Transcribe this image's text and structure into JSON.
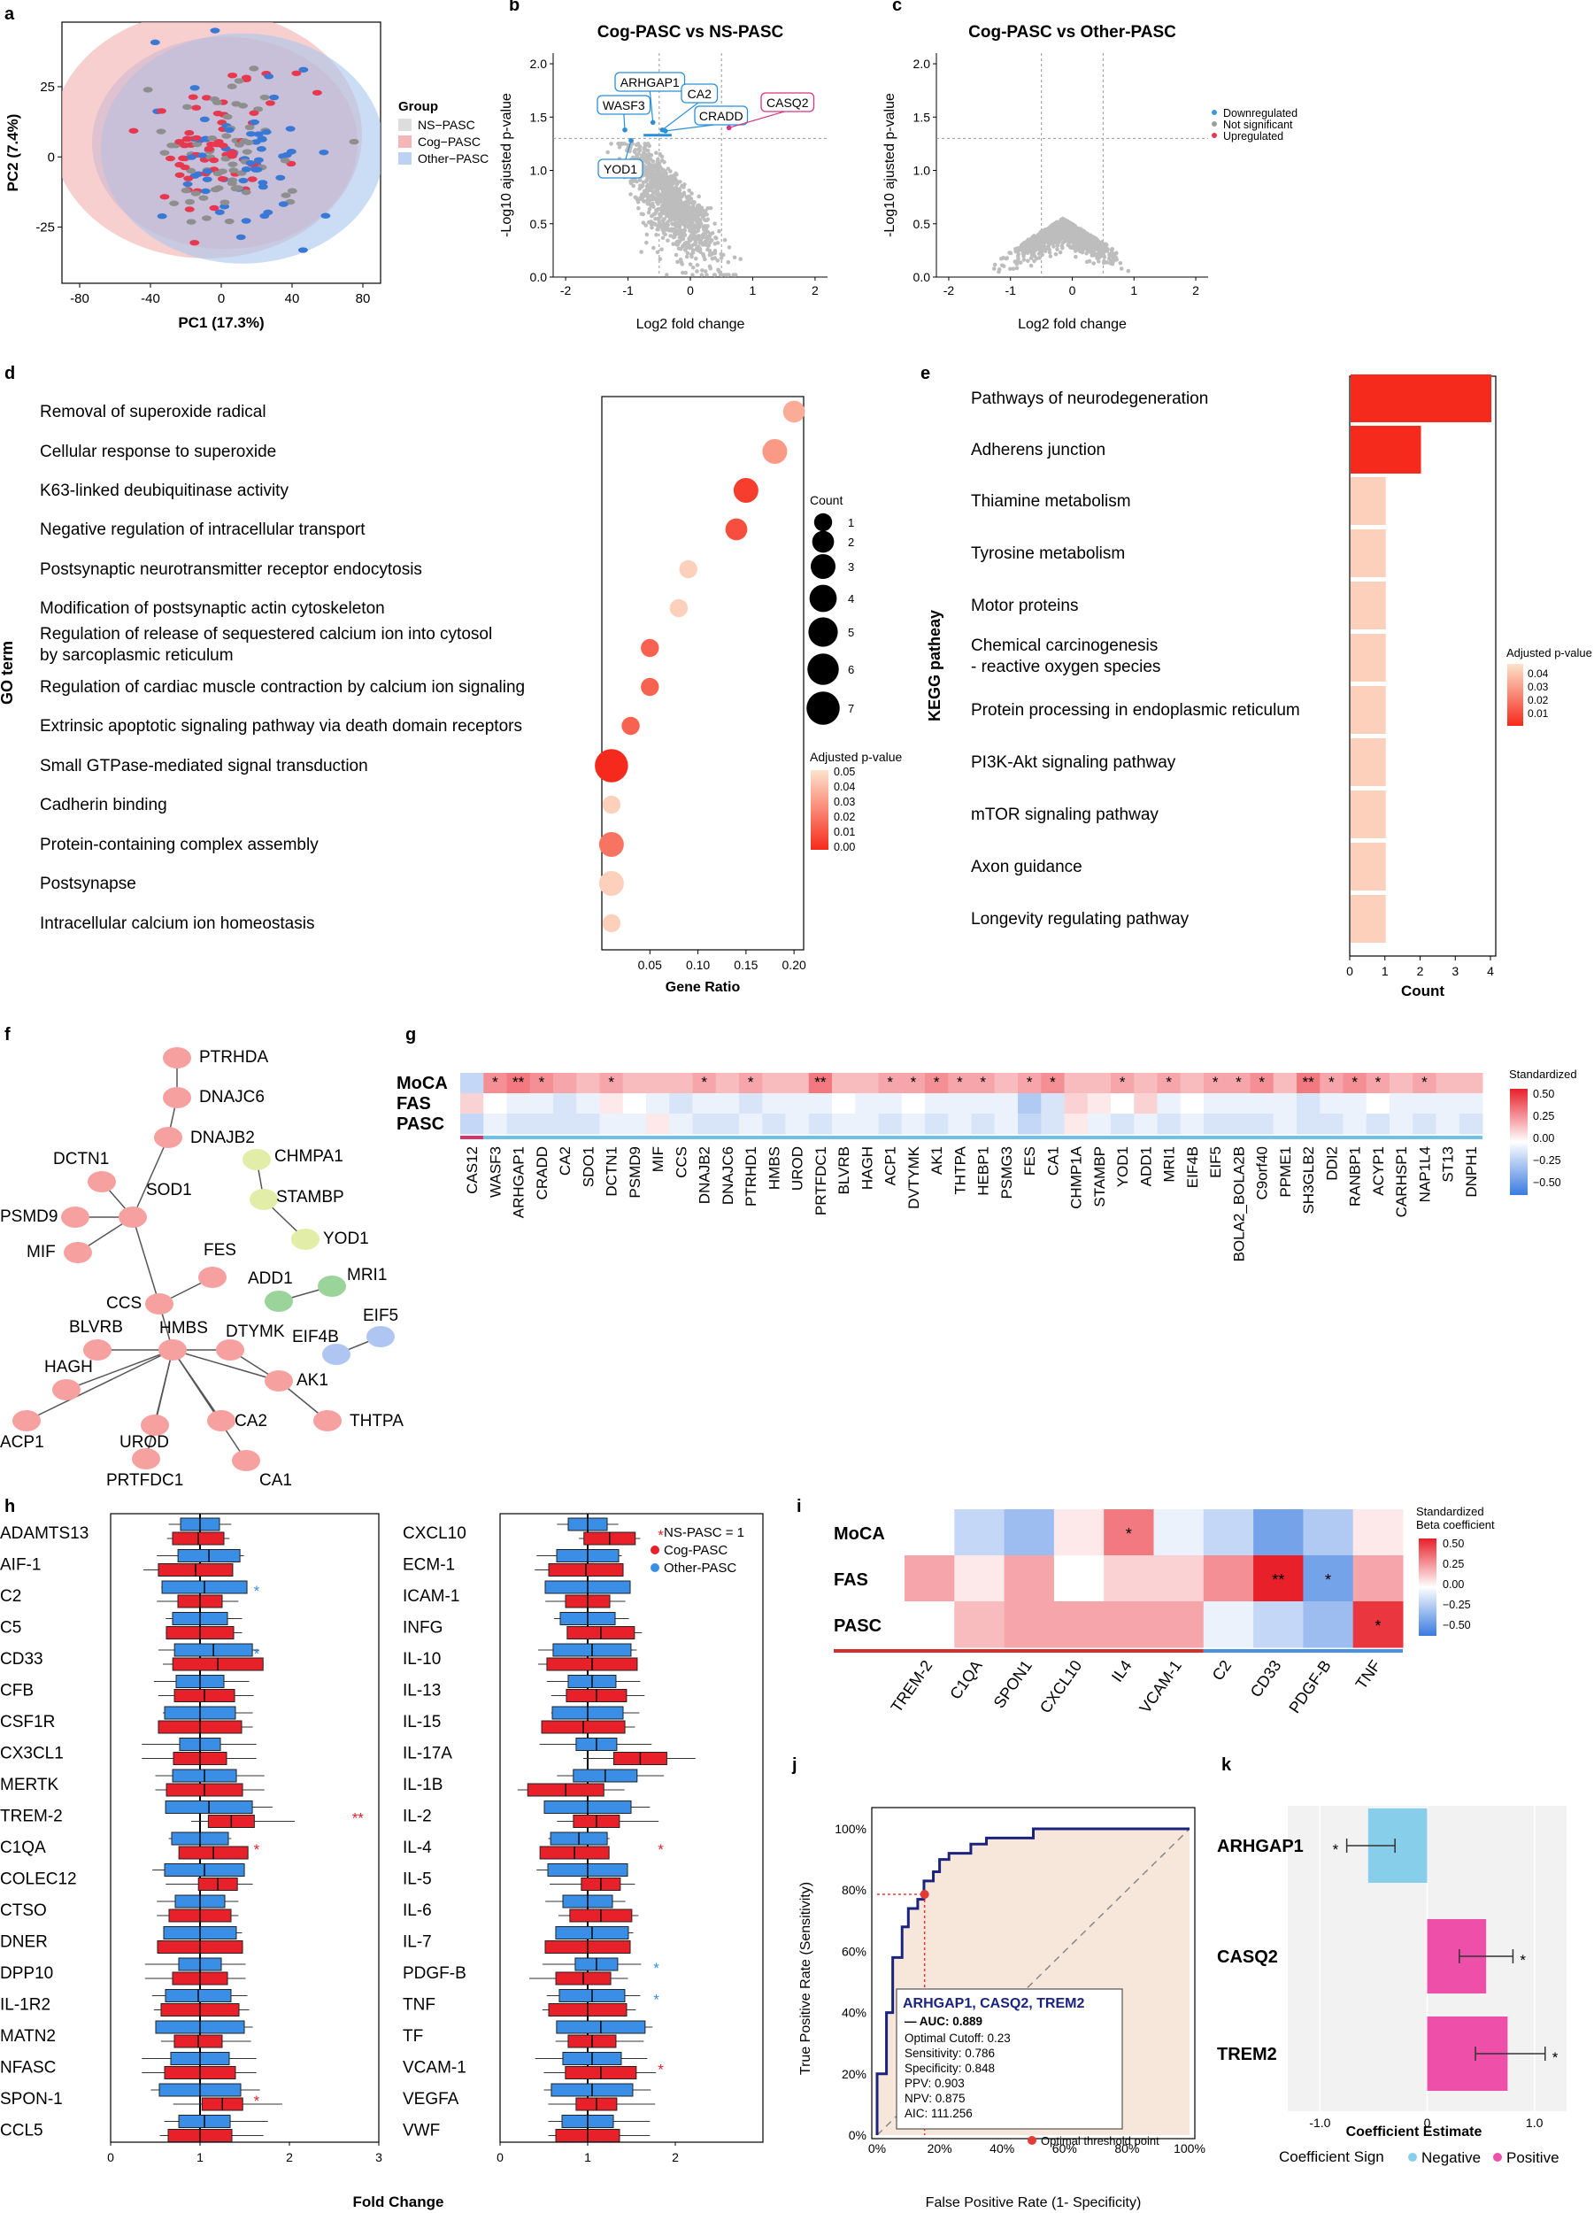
{
  "panels": {
    "a": {
      "letter": "a",
      "legend_title": "Group",
      "legend": [
        "NS−PASC",
        "Cog−PASC",
        "Other−PASC"
      ],
      "xlabel": "PC1 (17.3%)",
      "ylabel": "PC2 (7.4%)",
      "xticks": [
        "-80",
        "-40",
        "0",
        "40",
        "80"
      ],
      "yticks": [
        "25",
        "0",
        "-25"
      ],
      "colors": {
        "NS": "#8e8e8e",
        "Cog": "#e8384f",
        "Other": "#3a78d6"
      }
    },
    "b": {
      "letter": "b",
      "title": "Cog-PASC vs NS-PASC",
      "xlabel": "Log2 fold change",
      "ylabel": "-Log10 ajusted p-value",
      "xticks": [
        "-2",
        "-1",
        "0",
        "1",
        "2"
      ],
      "yticks": [
        "2.0",
        "1.5",
        "1.0",
        "0.5",
        "0.0"
      ],
      "genes": [
        "ARHGAP1",
        "WASF3",
        "CA2",
        "CRADD",
        "YOD1",
        "CASQ2"
      ]
    },
    "c": {
      "letter": "c",
      "title": "Cog-PASC vs Other-PASC",
      "xlabel": "Log2 fold change",
      "ylabel": "-Log10 ajusted p-value",
      "xticks": [
        "-2",
        "-1",
        "0",
        "1",
        "2"
      ],
      "yticks": [
        "2.0",
        "1.5",
        "1.0",
        "0.5",
        "0.0"
      ],
      "legend": [
        "Downregulated",
        "Not significant",
        "Upregulated"
      ],
      "colors": {
        "down": "#3a9ad9",
        "ns": "#9e9e9e",
        "up": "#e8384f"
      }
    },
    "d": {
      "letter": "d",
      "ylabel": "GO term",
      "xlabel": "Gene Ratio",
      "xticks": [
        "0.05",
        "0.10",
        "0.15",
        "0.20"
      ],
      "count_title": "Count",
      "count_labels": [
        "1",
        "2",
        "3",
        "4",
        "5",
        "6",
        "7"
      ],
      "p_title": "Adjusted p-value",
      "p_labels": [
        "0.05",
        "0.04",
        "0.03",
        "0.02",
        "0.01",
        "0.00"
      ],
      "terms": [
        "Removal of superoxide radical",
        "Cellular response to superoxide",
        "K63-linked deubiquitinase activity",
        "Negative regulation of intracellular transport",
        "Postsynaptic neurotransmitter receptor endocytosis",
        "Modification of postsynaptic actin cytoskeleton",
        "Regulation of release of sequestered calcium ion into cytosol",
        "by sarcoplasmic reticulum",
        "Regulation of cardiac muscle contraction by calcium ion signaling",
        "Extrinsic apoptotic signaling pathway via death domain receptors",
        "Small GTPase-mediated signal transduction",
        "Cadherin binding",
        "Protein-containing complex assembly",
        "Postsynapse",
        "Intracellular calcium ion homeostasis"
      ]
    },
    "e": {
      "letter": "e",
      "ylabel": "KEGG patheay",
      "xlabel": "Count",
      "xticks": [
        "0",
        "1",
        "2",
        "3",
        "4"
      ],
      "p_title": "Adjusted p-value",
      "p_labels": [
        "0.04",
        "0.03",
        "0.02",
        "0.01"
      ],
      "pathways": [
        "Pathways of neurodegeneration",
        "Adherens junction",
        "Thiamine metabolism",
        "Tyrosine metabolism",
        "Motor proteins",
        "Chemical carcinogenesis",
        "- reactive oxygen species",
        "Protein processing in endoplasmic reticulum",
        "PI3K-Akt signaling pathway",
        "mTOR signaling pathway",
        "Axon guidance",
        "Longevity regulating pathway"
      ]
    },
    "f": {
      "letter": "f",
      "nodes": [
        "PTRHDA",
        "DNAJC6",
        "DNAJB2",
        "DCTN1",
        "PSMD9",
        "SOD1",
        "MIF",
        "CHMPA1",
        "STAMBP",
        "YOD1",
        "FES",
        "ADD1",
        "MRI1",
        "CCS",
        "EIF4B",
        "EIF5",
        "BLVRB",
        "HMBS",
        "DTYMK",
        "HAGH",
        "AK1",
        "ACP1",
        "CA2",
        "THTPA",
        "UROD",
        "PRTFDC1",
        "CA1"
      ]
    },
    "g": {
      "letter": "g",
      "rows": [
        "MoCA",
        "FAS",
        "PASC"
      ],
      "legend_title": "Standardized",
      "legend_labels": [
        "0.50",
        "0.25",
        "0.00",
        "−0.25",
        "−0.50"
      ],
      "genes": [
        "CAS12",
        "WASF3",
        "ARHGAP1",
        "CRADD",
        "CA2",
        "SDO1",
        "DCTN1",
        "PSMD9",
        "MIF",
        "CCS",
        "DNAJB2",
        "DNAJC6",
        "PTRHD1",
        "HMBS",
        "UROD",
        "PRTFDC1",
        "BLVRB",
        "HAGH",
        "ACP1",
        "DVTYMK",
        "AK1",
        "THTPA",
        "HEBP1",
        "PSMG3",
        "FES",
        "CA1",
        "CHMP1A",
        "STAMBP",
        "YOD1",
        "ADD1",
        "MRI1",
        "EIF4B",
        "EIF5",
        "BOLA2_BOLA2B",
        "C9orf40",
        "PPME1",
        "SH3GLB2",
        "DDI2",
        "RANBP1",
        "ACYP1",
        "CARHSP1",
        "NAP1L4",
        "ST13",
        "DNPH1"
      ],
      "stars": [
        "",
        "*",
        "**",
        "*",
        "",
        "",
        "*",
        "",
        "",
        "",
        "*",
        "",
        "*",
        "",
        "",
        "**",
        "",
        "",
        "*",
        "*",
        "*",
        "*",
        "*",
        "",
        "*",
        "*",
        "",
        "",
        "*",
        "",
        "*",
        "",
        "*",
        "*",
        "*",
        "",
        "**",
        "*",
        "*",
        "*",
        "",
        "*",
        "",
        ""
      ]
    },
    "h": {
      "letter": "h",
      "xlabel": "Fold Change",
      "xticks": [
        "0",
        "1",
        "2",
        "3"
      ],
      "legend": [
        "NS-PASC = 1",
        "Cog-PASC",
        "Other-PASC"
      ],
      "left": [
        "ADAMTS13",
        "AIF-1",
        "C2",
        "C5",
        "CD33",
        "CFB",
        "CSF1R",
        "CX3CL1",
        "MERTK",
        "TREM-2",
        "C1QA",
        "COLEC12",
        "CTSO",
        "DNER",
        "DPP10",
        "IL-1R2",
        "MATN2",
        "NFASC",
        "SPON-1",
        "CCL5"
      ],
      "right": [
        "CXCL10",
        "ECM-1",
        "ICAM-1",
        "INFG",
        "IL-10",
        "IL-13",
        "IL-15",
        "IL-17A",
        "IL-1B",
        "IL-2",
        "IL-4",
        "IL-5",
        "IL-6",
        "IL-7",
        "PDGF-B",
        "TNF",
        "TF",
        "VCAM-1",
        "VEGFA",
        "VWF"
      ],
      "stars_left": [
        "",
        "",
        "*",
        "",
        "*",
        "",
        "",
        "",
        "",
        "**",
        "*",
        "",
        "",
        "",
        "",
        "",
        "",
        "",
        "*",
        ""
      ],
      "stars_right": [
        "*",
        "",
        "",
        "",
        "",
        "",
        "",
        "",
        "",
        "",
        "*",
        "",
        "",
        "",
        "*",
        "*",
        "",
        "*",
        "",
        ""
      ]
    },
    "i": {
      "letter": "i",
      "rows": [
        "MoCA",
        "FAS",
        "PASC"
      ],
      "legend_title": "Standardized",
      "legend_title2": "Beta coefficient",
      "legend_labels": [
        "0.50",
        "0.25",
        "0.00",
        "−0.25",
        "−0.50"
      ],
      "cols": [
        "TREM-2",
        "C1QA",
        "SPON1",
        "CXCL10",
        "IL4",
        "VCAM-1",
        "C2",
        "CD33",
        "PDGF-B",
        "TNF"
      ]
    },
    "j": {
      "letter": "j",
      "xlabel": "False Positive Rate (1- Specificity)",
      "ylabel": "True Positive Rate (Sensitivity)",
      "xticks": [
        "0%",
        "20%",
        "40%",
        "60%",
        "80%",
        "100%"
      ],
      "yticks": [
        "100%",
        "80%",
        "60%",
        "40%",
        "20%",
        "0%"
      ],
      "box_title": "ARHGAP1, CASQ2, TREM2",
      "auc": "— AUC: 0.889",
      "stats": [
        "Optimal Cutoff: 0.23",
        "Sensitivity: 0.786",
        "Specificity: 0.848",
        "PPV: 0.903",
        "NPV: 0.875",
        "AIC: 111.256"
      ],
      "threshold_label": "Optimal threshold point"
    },
    "k": {
      "letter": "k",
      "xlabel": "Coefficient Estimate",
      "xticks": [
        "-1.0",
        "0",
        "1.0"
      ],
      "legend_title": "Coefficient Sign",
      "legend": [
        "Negative",
        "Positive"
      ],
      "genes": [
        "ARHGAP1",
        "CASQ2",
        "TREM2"
      ],
      "stars": [
        "*",
        "*",
        "*"
      ],
      "colors": {
        "neg": "#87ceeb",
        "pos": "#ee4fa8"
      }
    }
  },
  "chart_data": [
    {
      "type": "scatter",
      "panel": "a",
      "xlim": [
        -90,
        90
      ],
      "ylim": [
        -45,
        48
      ],
      "series": [
        {
          "name": "NS−PASC"
        },
        {
          "name": "Cog−PASC"
        },
        {
          "name": "Other−PASC"
        }
      ]
    },
    {
      "type": "scatter",
      "panel": "b",
      "xlim": [
        -2.2,
        2.2
      ],
      "ylim": [
        0,
        2.1
      ],
      "thresholds": {
        "x": [
          -0.5,
          0.5
        ],
        "y": 1.3
      },
      "labeled_points": [
        {
          "gene": "ARHGAP1",
          "x": -0.6,
          "y": 1.45
        },
        {
          "gene": "WASF3",
          "x": -1.05,
          "y": 1.38
        },
        {
          "gene": "CA2",
          "x": -0.45,
          "y": 1.38
        },
        {
          "gene": "CRADD",
          "x": -0.4,
          "y": 1.37
        },
        {
          "gene": "YOD1",
          "x": -0.95,
          "y": 1.28
        },
        {
          "gene": "CASQ2",
          "x": 0.62,
          "y": 1.4
        }
      ]
    },
    {
      "type": "scatter",
      "panel": "c",
      "xlim": [
        -2.2,
        2.2
      ],
      "ylim": [
        0,
        2.1
      ],
      "thresholds": {
        "x": [
          -0.5,
          0.5
        ],
        "y": 1.3
      }
    },
    {
      "type": "scatter",
      "panel": "d",
      "x": [
        0.2,
        0.18,
        0.15,
        0.14,
        0.09,
        0.08,
        0.05,
        0.05,
        0.03,
        0.01,
        0.01,
        0.01,
        0.01,
        0.01
      ],
      "count": [
        2,
        3,
        3,
        2,
        1,
        1,
        1,
        1,
        1,
        7,
        1,
        3,
        3,
        1
      ],
      "padj": [
        0.035,
        0.03,
        0.005,
        0.01,
        0.045,
        0.045,
        0.015,
        0.015,
        0.015,
        0.0,
        0.045,
        0.02,
        0.045,
        0.045
      ]
    },
    {
      "type": "bar",
      "panel": "e",
      "values": [
        4,
        2,
        1,
        1,
        1,
        1,
        1,
        1,
        1,
        1,
        1
      ],
      "padj": [
        0.0,
        0.0,
        0.045,
        0.045,
        0.045,
        0.045,
        0.045,
        0.045,
        0.045,
        0.045,
        0.045
      ]
    },
    {
      "type": "heatmap",
      "panel": "g",
      "values": [
        [
          -0.15,
          0.25,
          0.3,
          0.25,
          0.2,
          0.15,
          0.2,
          0.15,
          0.15,
          0.15,
          0.2,
          0.15,
          0.2,
          0.15,
          0.15,
          0.3,
          0.15,
          0.15,
          0.2,
          0.2,
          0.25,
          0.2,
          0.2,
          0.15,
          0.2,
          0.25,
          0.15,
          0.15,
          0.2,
          0.15,
          0.2,
          0.15,
          0.2,
          0.2,
          0.25,
          0.15,
          0.3,
          0.2,
          0.25,
          0.2,
          0.15,
          0.2,
          0.15,
          0.15
        ],
        [
          0.1,
          0.0,
          -0.05,
          -0.05,
          -0.1,
          -0.05,
          0.05,
          0.0,
          -0.05,
          -0.1,
          -0.05,
          -0.05,
          -0.1,
          -0.05,
          -0.05,
          -0.05,
          0.0,
          -0.05,
          -0.05,
          0.0,
          -0.05,
          -0.05,
          -0.05,
          -0.05,
          -0.2,
          -0.1,
          0.1,
          0.05,
          0.0,
          0.1,
          -0.05,
          0.0,
          -0.05,
          -0.05,
          -0.05,
          -0.05,
          -0.1,
          -0.05,
          -0.05,
          0.0,
          -0.05,
          -0.05,
          -0.05,
          -0.05
        ],
        [
          -0.15,
          -0.05,
          -0.1,
          -0.1,
          -0.1,
          -0.1,
          -0.05,
          -0.05,
          0.05,
          -0.05,
          -0.1,
          -0.1,
          -0.05,
          -0.1,
          -0.05,
          -0.1,
          -0.05,
          -0.05,
          -0.1,
          -0.05,
          -0.1,
          -0.05,
          -0.1,
          -0.05,
          -0.15,
          -0.1,
          0.05,
          -0.05,
          -0.1,
          -0.05,
          -0.1,
          -0.05,
          -0.1,
          -0.1,
          -0.1,
          -0.05,
          -0.1,
          -0.1,
          -0.05,
          -0.1,
          -0.05,
          -0.1,
          -0.05,
          -0.1
        ]
      ]
    },
    {
      "type": "bar",
      "panel": "h",
      "xlim": [
        0,
        3
      ],
      "left_cog": [
        0.98,
        0.95,
        1.0,
        1.0,
        1.2,
        1.05,
        1.0,
        1.0,
        1.05,
        1.35,
        1.15,
        1.2,
        1.0,
        1.0,
        1.0,
        1.0,
        0.98,
        1.0,
        1.25,
        1.0
      ],
      "left_other": [
        1.0,
        1.1,
        1.05,
        1.0,
        1.15,
        1.0,
        1.0,
        1.0,
        1.05,
        1.1,
        1.0,
        1.05,
        1.0,
        1.0,
        1.0,
        0.98,
        1.0,
        1.0,
        1.0,
        1.05
      ],
      "right_cog": [
        1.25,
        0.98,
        1.0,
        1.15,
        1.05,
        1.1,
        0.95,
        1.6,
        0.75,
        1.1,
        0.85,
        1.15,
        1.15,
        1.0,
        0.95,
        1.0,
        1.05,
        1.15,
        1.1,
        1.0
      ],
      "right_other": [
        1.0,
        1.0,
        1.0,
        1.0,
        1.05,
        1.05,
        1.0,
        1.1,
        1.2,
        1.0,
        0.9,
        1.0,
        1.0,
        1.05,
        1.1,
        1.05,
        1.15,
        1.05,
        1.05,
        1.0
      ]
    },
    {
      "type": "heatmap",
      "panel": "i",
      "values": [
        [
          0.0,
          -0.15,
          -0.25,
          0.05,
          0.3,
          -0.05,
          -0.15,
          -0.35,
          -0.2,
          0.05
        ],
        [
          0.2,
          0.05,
          0.2,
          0.0,
          0.1,
          0.1,
          0.25,
          0.5,
          -0.35,
          0.2
        ],
        [
          0.0,
          0.15,
          0.2,
          0.2,
          0.2,
          0.2,
          -0.05,
          -0.15,
          -0.25,
          0.45
        ]
      ],
      "stars": [
        [
          "",
          "",
          "",
          "",
          "*",
          "",
          "",
          "",
          "",
          ""
        ],
        [
          "",
          "",
          "",
          "",
          "",
          "",
          "",
          "**",
          "*",
          ""
        ],
        [
          "",
          "",
          "",
          "",
          "",
          "",
          "",
          "",
          "",
          "*"
        ]
      ]
    },
    {
      "type": "line",
      "panel": "j",
      "xlim": [
        0,
        1
      ],
      "ylim": [
        0,
        1
      ],
      "x": [
        0,
        0.0,
        0.03,
        0.03,
        0.05,
        0.05,
        0.08,
        0.08,
        0.1,
        0.1,
        0.13,
        0.13,
        0.15,
        0.15,
        0.18,
        0.18,
        0.2,
        0.2,
        0.23,
        0.23,
        0.25,
        0.3,
        0.3,
        0.35,
        0.35,
        0.5,
        0.5,
        0.62,
        0.62,
        0.72,
        0.72,
        1.0
      ],
      "y": [
        0,
        0.2,
        0.2,
        0.4,
        0.4,
        0.58,
        0.58,
        0.68,
        0.68,
        0.74,
        0.74,
        0.77,
        0.77,
        0.83,
        0.83,
        0.86,
        0.86,
        0.9,
        0.9,
        0.92,
        0.92,
        0.92,
        0.95,
        0.95,
        0.97,
        0.97,
        1.0,
        1.0,
        1.0,
        1.0,
        1.0,
        1.0
      ],
      "optimal_point": {
        "fpr": 0.152,
        "tpr": 0.786
      }
    },
    {
      "type": "bar",
      "panel": "k",
      "xlim": [
        -1.3,
        1.3
      ],
      "values": [
        -0.55,
        0.55,
        0.75
      ],
      "ci_low": [
        -0.75,
        0.3,
        0.45
      ],
      "ci_high": [
        -0.3,
        0.8,
        1.1
      ]
    }
  ]
}
